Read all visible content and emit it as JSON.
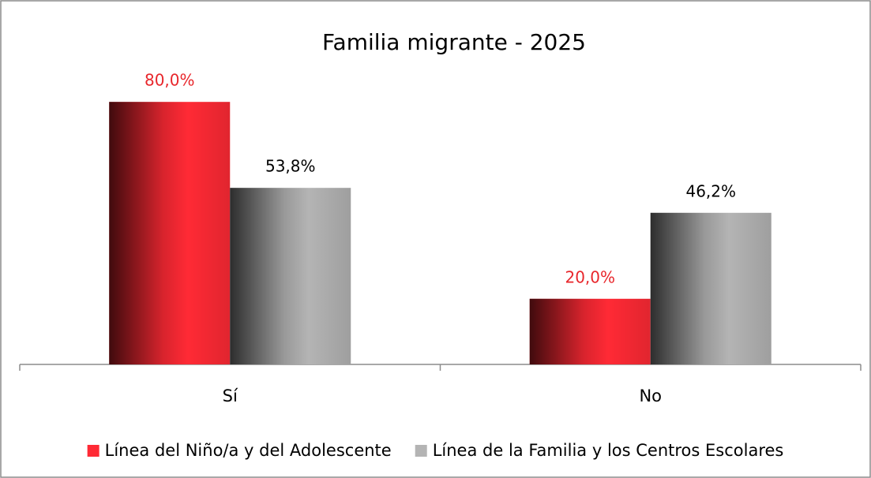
{
  "chart_data": {
    "type": "bar",
    "title": "Familia migrante - 2025",
    "categories": [
      "Sí",
      "No"
    ],
    "series": [
      {
        "name": "Línea del Niño/a y del Adolescente",
        "color": "#ff2a35",
        "label_color": "#e8262b",
        "values": [
          80,
          20
        ],
        "value_labels": [
          "80,0%",
          "20,0%"
        ]
      },
      {
        "name": "Línea de la Familia y los Centros Escolares",
        "color": "#b4b4b4",
        "label_color": "#000000",
        "values": [
          53.8,
          46.2
        ],
        "value_labels": [
          "53,8%",
          "46,2%"
        ]
      }
    ],
    "ylim": [
      0,
      100
    ],
    "legend": "bottom"
  }
}
